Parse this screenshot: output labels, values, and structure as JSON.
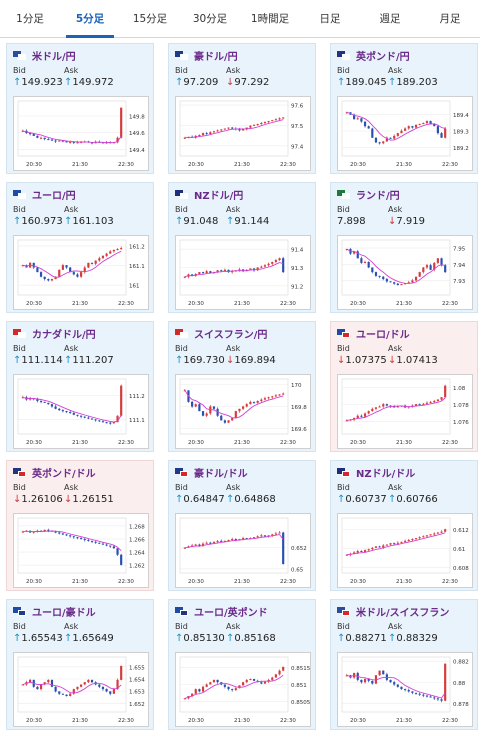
{
  "tabs": [
    "1分足",
    "5分足",
    "15分足",
    "30分足",
    "1時間足",
    "日足",
    "週足",
    "月足"
  ],
  "active_tab": 1,
  "labels": {
    "bid": "Bid",
    "ask": "Ask"
  },
  "cards": [
    {
      "pair": "米ドル/円",
      "bid": "149.923",
      "ask": "149.972",
      "bid_dir": "up",
      "ask_dir": "up",
      "theme": "blue",
      "flag": [
        "#2c4c9c",
        "#ffffff"
      ],
      "chart_data": {
        "type": "candlestick",
        "x_ticks": [
          "20:30",
          "21:30",
          "22:30"
        ],
        "y_ticks": [
          "149.8",
          "149.6",
          "149.4"
        ],
        "ylim": [
          149.32,
          149.98
        ]
      }
    },
    {
      "pair": "豪ドル/円",
      "bid": "97.209",
      "ask": "97.292",
      "bid_dir": "up",
      "ask_dir": "dn",
      "theme": "blue",
      "flag": [
        "#1e3b8a",
        "#ffffff"
      ],
      "chart_data": {
        "type": "candlestick",
        "x_ticks": [
          "20:30",
          "21:30",
          "22:30"
        ],
        "y_ticks": [
          "97.6",
          "97.5",
          "97.4"
        ],
        "ylim": [
          97.35,
          97.62
        ]
      }
    },
    {
      "pair": "英ポンド/円",
      "bid": "189.045",
      "ask": "189.203",
      "bid_dir": "up",
      "ask_dir": "up",
      "theme": "blue",
      "flag": [
        "#23357f",
        "#ffffff"
      ],
      "chart_data": {
        "type": "candlestick",
        "x_ticks": [
          "20:30",
          "21:30",
          "22:30"
        ],
        "y_ticks": [
          "189.4",
          "189.3",
          "189.2"
        ],
        "ylim": [
          189.15,
          189.48
        ]
      }
    },
    {
      "pair": "ユーロ/円",
      "bid": "160.973",
      "ask": "161.103",
      "bid_dir": "up",
      "ask_dir": "up",
      "theme": "blue",
      "flag": [
        "#1e4aa8",
        "#ffffff"
      ],
      "chart_data": {
        "type": "candlestick",
        "x_ticks": [
          "20:30",
          "21:30",
          "22:30"
        ],
        "y_ticks": [
          "161.2",
          "161.1",
          "161"
        ],
        "ylim": [
          160.95,
          161.23
        ]
      }
    },
    {
      "pair": "NZドル/円",
      "bid": "91.048",
      "ask": "91.144",
      "bid_dir": "up",
      "ask_dir": "up",
      "theme": "blue",
      "flag": [
        "#1e2f7a",
        "#ffffff"
      ],
      "chart_data": {
        "type": "candlestick",
        "x_ticks": [
          "20:30",
          "21:30",
          "22:30"
        ],
        "y_ticks": [
          "91.4",
          "91.3",
          "91.2"
        ],
        "ylim": [
          91.15,
          91.45
        ]
      }
    },
    {
      "pair": "ランド/円",
      "bid": "7.898",
      "ask": "7.919",
      "bid_dir": "none",
      "ask_dir": "dn",
      "theme": "blue",
      "flag": [
        "#1f7a3a",
        "#ffffff"
      ],
      "chart_data": {
        "type": "candlestick",
        "x_ticks": [
          "20:30",
          "21:30",
          "22:30"
        ],
        "y_ticks": [
          "7.95",
          "7.94",
          "7.93"
        ],
        "ylim": [
          7.921,
          7.955
        ]
      }
    },
    {
      "pair": "カナダドル/円",
      "bid": "111.114",
      "ask": "111.207",
      "bid_dir": "up",
      "ask_dir": "up",
      "theme": "blue",
      "flag": [
        "#d62828",
        "#ffffff"
      ],
      "chart_data": {
        "type": "candlestick",
        "x_ticks": [
          "20:30",
          "21:30",
          "22:30"
        ],
        "y_ticks": [
          "111.2",
          "111.1"
        ],
        "ylim": [
          111.04,
          111.27
        ]
      }
    },
    {
      "pair": "スイスフラン/円",
      "bid": "169.730",
      "ask": "169.894",
      "bid_dir": "up",
      "ask_dir": "dn",
      "theme": "blue",
      "flag": [
        "#d62828",
        "#ffffff"
      ],
      "chart_data": {
        "type": "candlestick",
        "x_ticks": [
          "20:30",
          "21:30",
          "22:30"
        ],
        "y_ticks": [
          "170",
          "169.8",
          "169.6"
        ],
        "ylim": [
          169.55,
          170.05
        ]
      }
    },
    {
      "pair": "ユーロ/ドル",
      "bid": "1.07375",
      "ask": "1.07413",
      "bid_dir": "dn",
      "ask_dir": "dn",
      "theme": "pink",
      "flag": [
        "#1e4aa8",
        "#d62828"
      ],
      "chart_data": {
        "type": "candlestick",
        "x_ticks": [
          "20:30",
          "21:30",
          "22:30"
        ],
        "y_ticks": [
          "1.08",
          "1.078",
          "1.076"
        ],
        "ylim": [
          1.0745,
          1.081
        ]
      }
    },
    {
      "pair": "英ポンド/ドル",
      "bid": "1.26106",
      "ask": "1.26151",
      "bid_dir": "dn",
      "ask_dir": "dn",
      "theme": "pink",
      "flag": [
        "#23357f",
        "#d62828"
      ],
      "chart_data": {
        "type": "candlestick",
        "x_ticks": [
          "20:30",
          "21:30",
          "22:30"
        ],
        "y_ticks": [
          "1.268",
          "1.266",
          "1.264",
          "1.262"
        ],
        "ylim": [
          1.2608,
          1.2692
        ]
      }
    },
    {
      "pair": "豪ドル/ドル",
      "bid": "0.64847",
      "ask": "0.64868",
      "bid_dir": "up",
      "ask_dir": "up",
      "theme": "blue",
      "flag": [
        "#1e3b8a",
        "#d62828"
      ],
      "chart_data": {
        "type": "candlestick",
        "x_ticks": [
          "20:30",
          "21:30",
          "22:30"
        ],
        "y_ticks": [
          "0.652",
          "0.65"
        ],
        "ylim": [
          0.6496,
          0.6548
        ]
      }
    },
    {
      "pair": "NZドル/ドル",
      "bid": "0.60737",
      "ask": "0.60766",
      "bid_dir": "up",
      "ask_dir": "up",
      "theme": "blue",
      "flag": [
        "#1e2f7a",
        "#d62828"
      ],
      "chart_data": {
        "type": "candlestick",
        "x_ticks": [
          "20:30",
          "21:30",
          "22:30"
        ],
        "y_ticks": [
          "0.612",
          "0.61",
          "0.608"
        ],
        "ylim": [
          0.6074,
          0.6132
        ]
      }
    },
    {
      "pair": "ユーロ/豪ドル",
      "bid": "1.65543",
      "ask": "1.65649",
      "bid_dir": "up",
      "ask_dir": "up",
      "theme": "blue",
      "flag": [
        "#1e4aa8",
        "#1e3b8a"
      ],
      "chart_data": {
        "type": "candlestick",
        "x_ticks": [
          "20:30",
          "21:30",
          "22:30"
        ],
        "y_ticks": [
          "1.655",
          "1.654",
          "1.653",
          "1.652"
        ],
        "ylim": [
          1.6513,
          1.6558
        ]
      }
    },
    {
      "pair": "ユーロ/英ポンド",
      "bid": "0.85130",
      "ask": "0.85168",
      "bid_dir": "up",
      "ask_dir": "up",
      "theme": "blue",
      "flag": [
        "#1e4aa8",
        "#23357f"
      ],
      "chart_data": {
        "type": "candlestick",
        "x_ticks": [
          "20:30",
          "21:30",
          "22:30"
        ],
        "y_ticks": [
          "0.8515",
          "0.851",
          "0.8505"
        ],
        "ylim": [
          0.8502,
          0.8518
        ]
      }
    },
    {
      "pair": "米ドル/スイスフラン",
      "bid": "0.88271",
      "ask": "0.88329",
      "bid_dir": "up",
      "ask_dir": "up",
      "theme": "blue",
      "flag": [
        "#2c4c9c",
        "#d62828"
      ],
      "chart_data": {
        "type": "candlestick",
        "x_ticks": [
          "20:30",
          "21:30",
          "22:30"
        ],
        "y_ticks": [
          "0.882",
          "0.88",
          "0.878"
        ],
        "ylim": [
          0.8772,
          0.8824
        ]
      }
    }
  ]
}
